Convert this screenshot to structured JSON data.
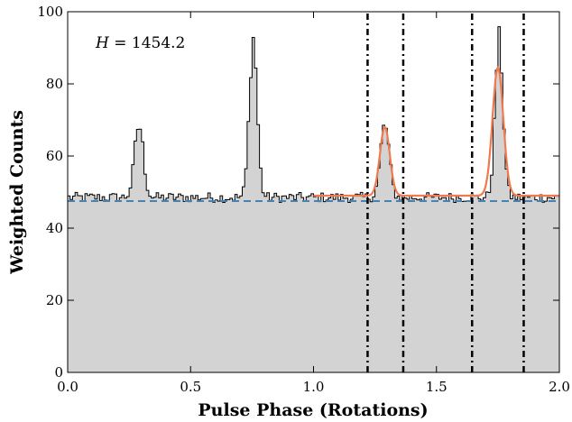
{
  "chart_data": {
    "type": "area",
    "xlabel": "Pulse Phase (Rotations)",
    "ylabel": "Weighted Counts",
    "xlim": [
      0.0,
      2.0
    ],
    "ylim": [
      0,
      100
    ],
    "x_ticks": [
      0.0,
      0.5,
      1.0,
      1.5,
      2.0
    ],
    "x_tick_labels": [
      "0.0",
      "0.5",
      "1.0",
      "1.5",
      "2.0"
    ],
    "y_ticks": [
      0,
      20,
      40,
      60,
      80,
      100
    ],
    "y_tick_labels": [
      "0",
      "20",
      "40",
      "60",
      "80",
      "100"
    ],
    "grid": false,
    "annotation": {
      "var": "H",
      "eq": "=",
      "value": "1454.2",
      "placement": "top-left"
    },
    "histogram": {
      "bin_width": 0.01,
      "baseline": 48.5,
      "noise_amplitude": 1.4,
      "fill_color": "#d3d3d3",
      "line_color": "#000000",
      "peaks": [
        {
          "center": 0.29,
          "height": 20,
          "sigma": 0.018
        },
        {
          "center": 0.755,
          "height": 44,
          "sigma": 0.016
        },
        {
          "center": 1.29,
          "height": 20,
          "sigma": 0.018
        },
        {
          "center": 1.755,
          "height": 44,
          "sigma": 0.016
        }
      ]
    },
    "background_level": {
      "y": 47.5,
      "color": "#4682b4",
      "style": "dashed"
    },
    "model_fit": {
      "x_range": [
        1.0,
        2.0
      ],
      "baseline": 49,
      "color": "#f07a50",
      "peaks": [
        {
          "center": 1.29,
          "height": 19,
          "sigma": 0.02
        },
        {
          "center": 1.75,
          "height": 35.5,
          "sigma": 0.022
        }
      ]
    },
    "vertical_lines": [
      {
        "x": 1.22,
        "style": "dashdot"
      },
      {
        "x": 1.365,
        "style": "dashdot"
      },
      {
        "x": 1.645,
        "style": "dashdot"
      },
      {
        "x": 1.855,
        "style": "dashdot"
      }
    ]
  }
}
